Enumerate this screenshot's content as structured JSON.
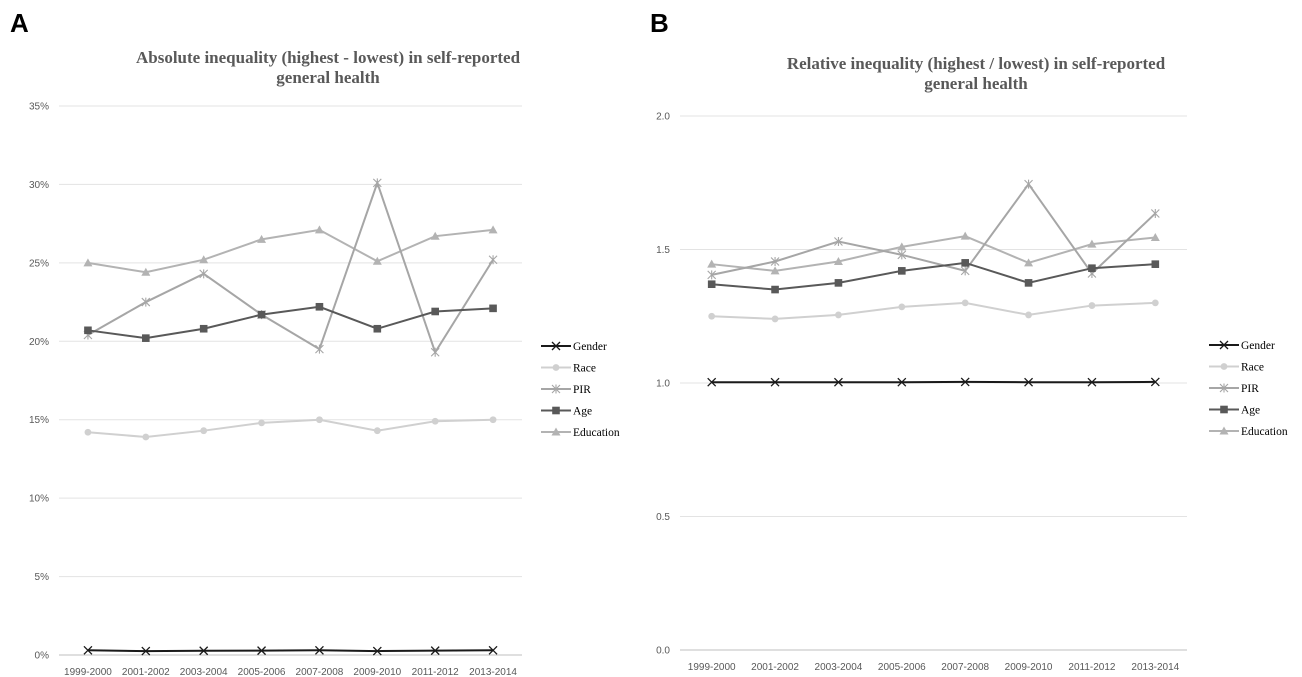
{
  "panels": [
    {
      "letter": "A"
    },
    {
      "letter": "B"
    }
  ],
  "chart_data": [
    {
      "type": "line",
      "title": "Absolute inequality (highest - lowest) in self-reported general health",
      "title_lines": [
        "Absolute inequality (highest - lowest) in self-reported",
        "general health"
      ],
      "categories": [
        "1999-2000",
        "2001-2002",
        "2003-2004",
        "2005-2006",
        "2007-2008",
        "2009-2010",
        "2011-2012",
        "2013-2014"
      ],
      "ylim": [
        0,
        35
      ],
      "yticks": [
        0,
        5,
        10,
        15,
        20,
        25,
        30,
        35
      ],
      "ytick_labels": [
        "0%",
        "5%",
        "10%",
        "15%",
        "20%",
        "25%",
        "30%",
        "35%"
      ],
      "grid": true,
      "legend": "right",
      "series": [
        {
          "name": "Gender",
          "values": [
            0.3,
            0.25,
            0.27,
            0.28,
            0.3,
            0.25,
            0.28,
            0.3
          ],
          "color": "#1a1a1a",
          "marker": "x"
        },
        {
          "name": "Race",
          "values": [
            14.2,
            13.9,
            14.3,
            14.8,
            15.0,
            14.3,
            14.9,
            15.0
          ],
          "color": "#d0d0d0",
          "marker": "circle"
        },
        {
          "name": "PIR",
          "values": [
            20.4,
            22.5,
            24.3,
            21.7,
            19.5,
            30.1,
            19.3,
            25.2
          ],
          "color": "#a6a6a6",
          "marker": "asterisk"
        },
        {
          "name": "Age",
          "values": [
            20.7,
            20.2,
            20.8,
            21.7,
            22.2,
            20.8,
            21.9,
            22.1
          ],
          "color": "#595959",
          "marker": "square"
        },
        {
          "name": "Education",
          "values": [
            25.0,
            24.4,
            25.2,
            26.5,
            27.1,
            25.1,
            26.7,
            27.1
          ],
          "color": "#b3b3b3",
          "marker": "triangle"
        }
      ]
    },
    {
      "type": "line",
      "title": "Relative inequality (highest / lowest) in self-reported general health",
      "title_lines": [
        "Relative inequality (highest / lowest) in self-reported",
        "general health"
      ],
      "categories": [
        "1999-2000",
        "2001-2002",
        "2003-2004",
        "2005-2006",
        "2007-2008",
        "2009-2010",
        "2011-2012",
        "2013-2014"
      ],
      "ylim": [
        0,
        2
      ],
      "yticks": [
        0,
        0.5,
        1.0,
        1.5,
        2.0
      ],
      "ytick_labels": [
        "0.0",
        "0.5",
        "1.0",
        "1.5",
        "2.0"
      ],
      "grid": true,
      "legend": "right",
      "series": [
        {
          "name": "Gender",
          "values": [
            1.003,
            1.003,
            1.003,
            1.003,
            1.004,
            1.003,
            1.003,
            1.004
          ],
          "color": "#1a1a1a",
          "marker": "x"
        },
        {
          "name": "Race",
          "values": [
            1.25,
            1.24,
            1.255,
            1.285,
            1.3,
            1.255,
            1.29,
            1.3
          ],
          "color": "#d0d0d0",
          "marker": "circle"
        },
        {
          "name": "PIR",
          "values": [
            1.405,
            1.455,
            1.53,
            1.48,
            1.42,
            1.745,
            1.41,
            1.635
          ],
          "color": "#a6a6a6",
          "marker": "asterisk"
        },
        {
          "name": "Age",
          "values": [
            1.37,
            1.35,
            1.375,
            1.42,
            1.45,
            1.375,
            1.43,
            1.445
          ],
          "color": "#595959",
          "marker": "square"
        },
        {
          "name": "Education",
          "values": [
            1.445,
            1.42,
            1.455,
            1.51,
            1.55,
            1.45,
            1.52,
            1.545
          ],
          "color": "#b3b3b3",
          "marker": "triangle"
        }
      ]
    }
  ]
}
